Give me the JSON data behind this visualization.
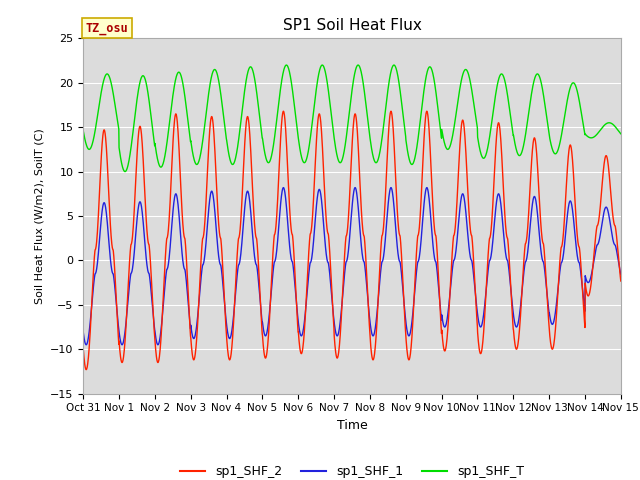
{
  "title": "SP1 Soil Heat Flux",
  "xlabel": "Time",
  "ylabel": "Soil Heat Flux (W/m2), SoilT (C)",
  "ylim": [
    -15,
    25
  ],
  "yticks": [
    -15,
    -10,
    -5,
    0,
    5,
    10,
    15,
    20,
    25
  ],
  "bg_color": "#dcdcdc",
  "fig_color": "#ffffff",
  "line_colors": {
    "shf2": "#ff2200",
    "shf1": "#2222dd",
    "shft": "#00dd00"
  },
  "line_width": 1.0,
  "legend_labels": [
    "sp1_SHF_2",
    "sp1_SHF_1",
    "sp1_SHF_T"
  ],
  "tz_label": "TZ_osu",
  "tz_bg": "#ffffcc",
  "tz_border": "#ccaa00",
  "tz_text_color": "#aa0000",
  "num_days": 15,
  "points_per_day": 144,
  "day_amplitudes_shf2": [
    14.7,
    15.1,
    16.5,
    16.2,
    16.2,
    16.8,
    16.5,
    16.5,
    16.8,
    16.8,
    15.8,
    15.5,
    13.8,
    13.0,
    11.8
  ],
  "day_min_shf2": [
    -12.3,
    -11.5,
    -11.5,
    -11.2,
    -11.2,
    -11.0,
    -10.5,
    -11.0,
    -11.2,
    -11.2,
    -10.2,
    -10.5,
    -10.0,
    -10.0,
    -4.0
  ],
  "day_amplitudes_shf1": [
    6.5,
    6.6,
    7.5,
    7.8,
    7.8,
    8.2,
    8.0,
    8.2,
    8.2,
    8.2,
    7.5,
    7.5,
    7.2,
    6.7,
    6.0
  ],
  "day_min_shf1": [
    -9.5,
    -9.5,
    -9.5,
    -8.8,
    -8.8,
    -8.5,
    -8.5,
    -8.5,
    -8.5,
    -8.5,
    -7.5,
    -7.5,
    -7.5,
    -7.2,
    -2.5
  ],
  "day_max_shft": [
    21.0,
    20.8,
    21.2,
    21.5,
    21.8,
    22.0,
    22.0,
    22.0,
    22.0,
    21.8,
    21.5,
    21.0,
    21.0,
    20.0,
    15.5
  ],
  "day_min_shft": [
    12.5,
    10.0,
    10.5,
    10.8,
    10.8,
    11.0,
    11.0,
    11.0,
    11.0,
    10.8,
    12.5,
    11.5,
    11.8,
    12.0,
    13.8
  ],
  "xtick_labels": [
    "Oct 31",
    "Nov 1",
    "Nov 2",
    "Nov 3",
    "Nov 4",
    "Nov 5",
    "Nov 6",
    "Nov 7",
    "Nov 8",
    "Nov 9",
    "Nov 10",
    "Nov 11",
    "Nov 12",
    "Nov 13",
    "Nov 14",
    "Nov 15"
  ]
}
